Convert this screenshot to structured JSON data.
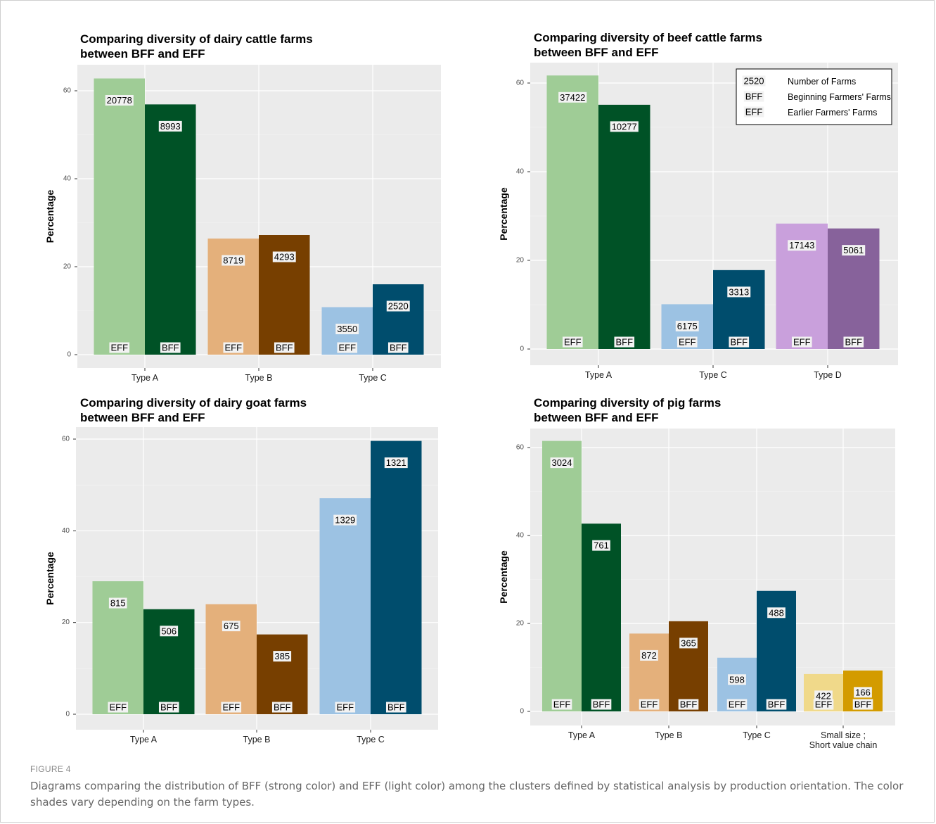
{
  "figure": {
    "label": "FIGURE 4",
    "caption": "Diagrams comparing the distribution of BFF (strong color) and EFF (light color) among the clusters defined by statistical analysis by production orientation. The color shades vary depending on the farm types."
  },
  "chart_data": [
    {
      "type": "bar",
      "title_lines": [
        "Comparing diversity of dairy cattle farms",
        "between BFF and EFF"
      ],
      "ylabel": "Percentage",
      "ylim": [
        0,
        62
      ],
      "yticks": [
        0,
        20,
        40,
        60
      ],
      "categories": [
        "Type A",
        "Type B",
        "Type C"
      ],
      "series": [
        {
          "name": "EFF",
          "values": [
            62.8,
            26.4,
            10.8
          ],
          "counts": [
            "20778",
            "8719",
            "3550"
          ]
        },
        {
          "name": "BFF",
          "values": [
            56.9,
            27.2,
            16.0
          ],
          "counts": [
            "8993",
            "4293",
            "2520"
          ]
        }
      ],
      "colors": {
        "EFF": [
          "#9fcc96",
          "#e4b07b",
          "#9cc2e3"
        ],
        "BFF": [
          "#005226",
          "#773f00",
          "#004d6d"
        ]
      }
    },
    {
      "type": "bar",
      "title_lines": [
        "Comparing diversity of beef cattle farms",
        "between BFF and EFF"
      ],
      "ylabel": "Percentage",
      "ylim": [
        0,
        62
      ],
      "yticks": [
        0,
        20,
        40,
        60
      ],
      "categories": [
        "Type A",
        "Type C",
        "Type D"
      ],
      "series": [
        {
          "name": "EFF",
          "values": [
            61.7,
            10.1,
            28.3
          ],
          "counts": [
            "37422",
            "6175",
            "17143"
          ]
        },
        {
          "name": "BFF",
          "values": [
            55.1,
            17.8,
            27.2
          ],
          "counts": [
            "10277",
            "3313",
            "5061"
          ]
        }
      ],
      "colors": {
        "EFF": [
          "#9fcc96",
          "#9cc2e3",
          "#c9a0dc"
        ],
        "BFF": [
          "#005226",
          "#004d6d",
          "#87629b"
        ]
      },
      "legend": {
        "position": "top-right",
        "items": [
          {
            "key": "2520",
            "label": "Number of Farms"
          },
          {
            "key": "BFF",
            "label": "Beginning Farmers' Farms"
          },
          {
            "key": "EFF",
            "label": "Earlier Farmers' Farms"
          }
        ]
      }
    },
    {
      "type": "bar",
      "title_lines": [
        "Comparing diversity of dairy goat farms",
        "between BFF and EFF"
      ],
      "ylabel": "Percentage",
      "ylim": [
        0,
        62
      ],
      "yticks": [
        0,
        20,
        40,
        60
      ],
      "categories": [
        "Type A",
        "Type B",
        "Type C"
      ],
      "series": [
        {
          "name": "EFF",
          "values": [
            29.0,
            24.0,
            47.1
          ],
          "counts": [
            "815",
            "675",
            "1329"
          ]
        },
        {
          "name": "BFF",
          "values": [
            22.9,
            17.4,
            59.6
          ],
          "counts": [
            "506",
            "385",
            "1321"
          ]
        }
      ],
      "colors": {
        "EFF": [
          "#9fcc96",
          "#e4b07b",
          "#9cc2e3"
        ],
        "BFF": [
          "#005226",
          "#773f00",
          "#004d6d"
        ]
      }
    },
    {
      "type": "bar",
      "title_lines": [
        "Comparing diversity of pig farms",
        "between BFF and EFF"
      ],
      "ylabel": "Percentage",
      "ylim": [
        0,
        62
      ],
      "yticks": [
        0,
        20,
        40,
        60
      ],
      "categories": [
        "Type A",
        "Type B",
        "Type C",
        "Small size ;\nShort value chain"
      ],
      "series": [
        {
          "name": "EFF",
          "values": [
            61.5,
            17.7,
            12.2,
            8.5
          ],
          "counts": [
            "3024",
            "872",
            "598",
            "422"
          ]
        },
        {
          "name": "BFF",
          "values": [
            42.7,
            20.5,
            27.4,
            9.3
          ],
          "counts": [
            "761",
            "365",
            "488",
            "166"
          ]
        }
      ],
      "colors": {
        "EFF": [
          "#9fcc96",
          "#e4b07b",
          "#9cc2e3",
          "#f0d98a"
        ],
        "BFF": [
          "#005226",
          "#773f00",
          "#004d6d",
          "#d39b00"
        ]
      }
    }
  ]
}
